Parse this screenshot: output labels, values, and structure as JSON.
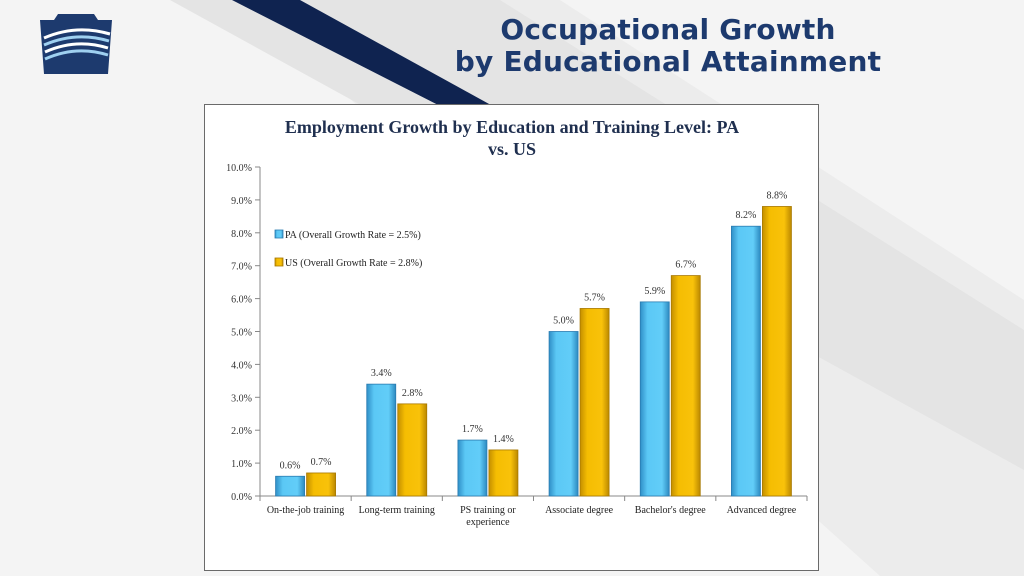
{
  "slide": {
    "title_line1": "Occupational Growth",
    "title_line2": "by Educational Attainment"
  },
  "colors": {
    "title": "#1d3a6e",
    "pa": "#5bc8f5",
    "us": "#f5bd02",
    "navy_stripe": "#0f2350"
  },
  "icons": {
    "logo": "keystone-logo-icon"
  },
  "chart_data": {
    "type": "bar",
    "title_line1": "Employment Growth by Education and Training Level: PA",
    "title_line2": "vs. US",
    "categories": [
      "On-the-job training",
      "Long-term training",
      "PS training or experience",
      "Associate degree",
      "Bachelor's degree",
      "Advanced degree"
    ],
    "category_lines": [
      [
        "On-the-job training"
      ],
      [
        "Long-term training"
      ],
      [
        "PS training or",
        "experience"
      ],
      [
        "Associate degree"
      ],
      [
        "Bachelor's degree"
      ],
      [
        "Advanced degree"
      ]
    ],
    "series": [
      {
        "name": "PA (Overall Growth Rate = 2.5%)",
        "values": [
          0.6,
          3.4,
          1.7,
          5.0,
          5.9,
          8.2
        ],
        "labels": [
          "0.6%",
          "3.4%",
          "1.7%",
          "5.0%",
          "5.9%",
          "8.2%"
        ]
      },
      {
        "name": "US (Overall Growth Rate = 2.8%)",
        "values": [
          0.7,
          2.8,
          1.4,
          5.7,
          6.7,
          8.8
        ],
        "labels": [
          "0.7%",
          "2.8%",
          "1.4%",
          "5.7%",
          "6.7%",
          "8.8%"
        ]
      }
    ],
    "ylim": [
      0,
      10
    ],
    "yticks": [
      "0.0%",
      "1.0%",
      "2.0%",
      "3.0%",
      "4.0%",
      "5.0%",
      "6.0%",
      "7.0%",
      "8.0%",
      "9.0%",
      "10.0%"
    ],
    "legend_position": "top-left",
    "grid": false
  }
}
